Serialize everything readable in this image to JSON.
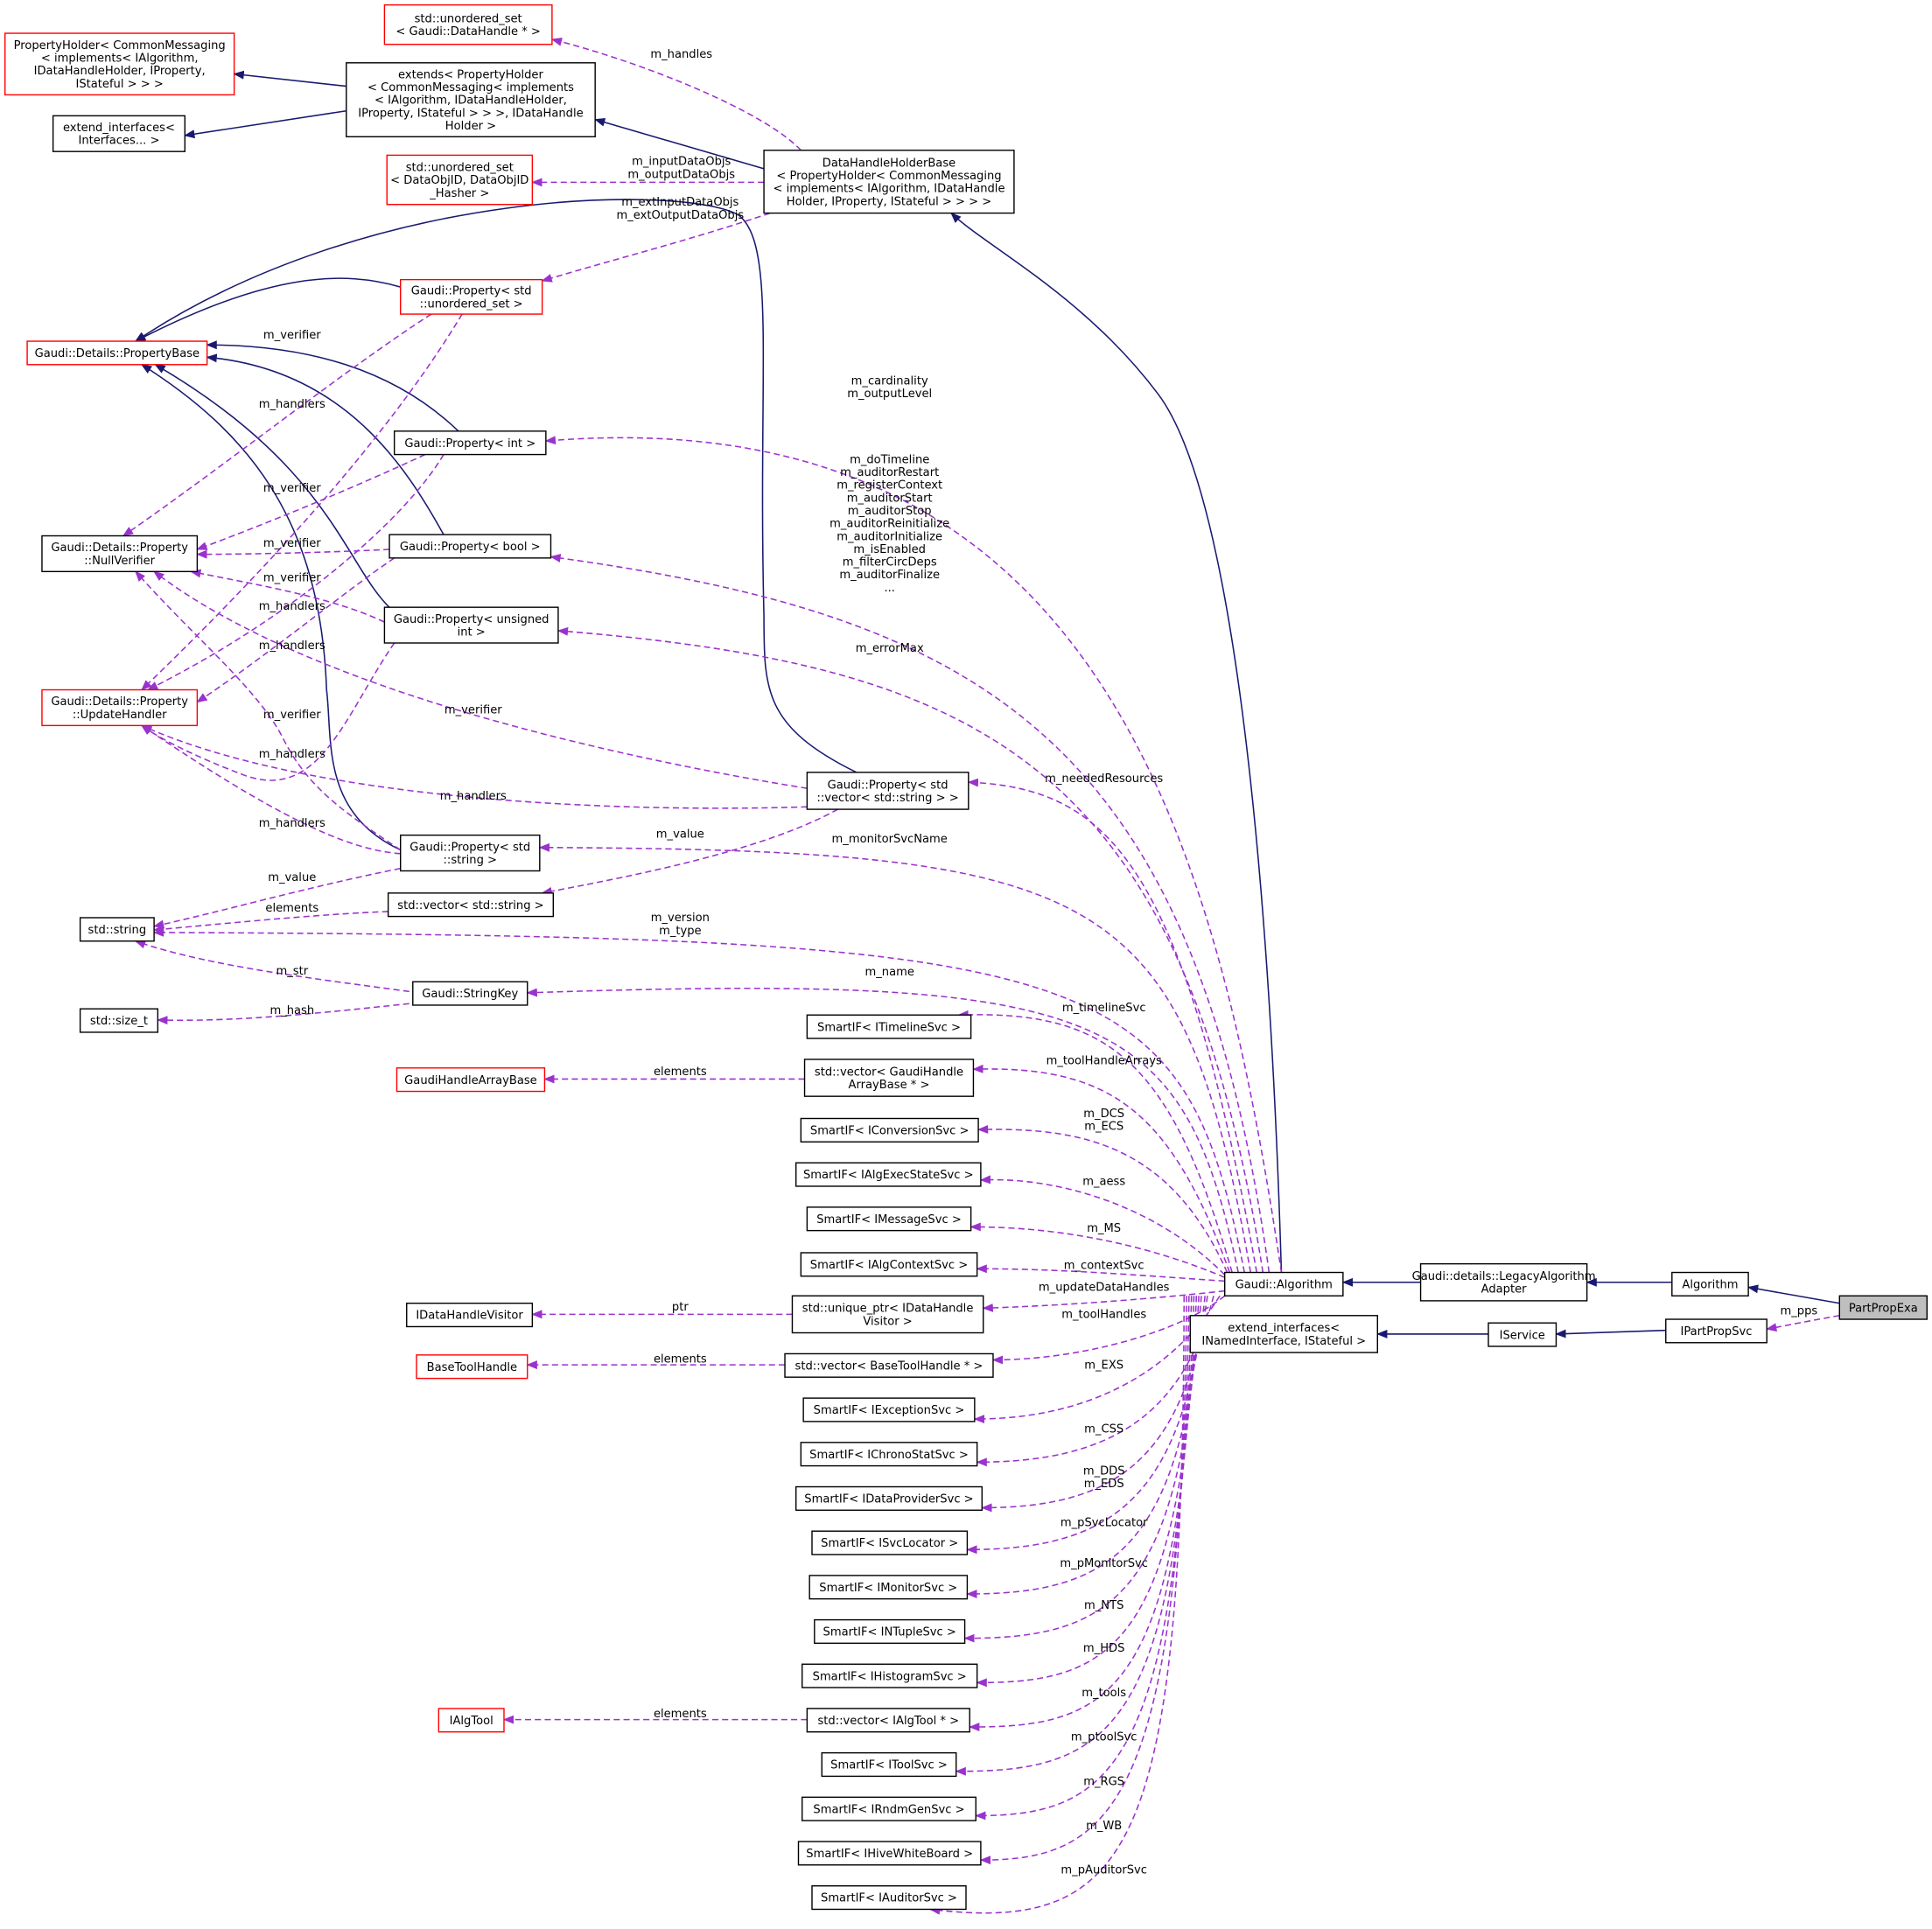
{
  "colors": {
    "inheritance": "#191970",
    "usage": "#9a32cd",
    "incomplete_border": "#ff0000",
    "complete_border": "#000000",
    "highlight_fill": "#bfbfbf"
  },
  "nodes": [
    {
      "id": "ush",
      "lines": [
        "std::unordered_set",
        "< Gaudi::DataHandle * >"
      ],
      "border": "red"
    },
    {
      "id": "ph",
      "lines": [
        "PropertyHolder< CommonMessaging",
        "< implements< IAlgorithm,",
        "IDataHandleHolder, IProperty,",
        "IStateful > > >"
      ],
      "border": "red"
    },
    {
      "id": "ext",
      "lines": [
        "extends< PropertyHolder",
        "< CommonMessaging< implements",
        "< IAlgorithm, IDataHandleHolder,",
        "IProperty, IStateful > > >, IDataHandle",
        "Holder >"
      ],
      "border": "black"
    },
    {
      "id": "ei",
      "lines": [
        "extend_interfaces<",
        "Interfaces... >"
      ],
      "border": "black"
    },
    {
      "id": "usd",
      "lines": [
        "std::unordered_set",
        "< DataObjID, DataObjID",
        "_Hasher >"
      ],
      "border": "red"
    },
    {
      "id": "dhhb",
      "lines": [
        "DataHandleHolderBase",
        "< PropertyHolder< CommonMessaging",
        "< implements< IAlgorithm, IDataHandle",
        "Holder, IProperty, IStateful > > > >"
      ],
      "border": "black"
    },
    {
      "id": "pus",
      "lines": [
        "Gaudi::Property< std",
        "::unordered_set >"
      ],
      "border": "red"
    },
    {
      "id": "pb",
      "lines": [
        "Gaudi::Details::PropertyBase"
      ],
      "border": "red"
    },
    {
      "id": "pint",
      "lines": [
        "Gaudi::Property< int >"
      ],
      "border": "black"
    },
    {
      "id": "nv",
      "lines": [
        "Gaudi::Details::Property",
        "::NullVerifier"
      ],
      "border": "black"
    },
    {
      "id": "pbool",
      "lines": [
        "Gaudi::Property< bool >"
      ],
      "border": "black"
    },
    {
      "id": "puint",
      "lines": [
        "Gaudi::Property< unsigned",
        "int >"
      ],
      "border": "black"
    },
    {
      "id": "uh",
      "lines": [
        "Gaudi::Details::Property",
        "::UpdateHandler"
      ],
      "border": "red"
    },
    {
      "id": "pvs",
      "lines": [
        "Gaudi::Property< std",
        "::vector< std::string > >"
      ],
      "border": "black"
    },
    {
      "id": "pstr",
      "lines": [
        "Gaudi::Property< std",
        "::string >"
      ],
      "border": "black"
    },
    {
      "id": "vs",
      "lines": [
        "std::vector< std::string >"
      ],
      "border": "black"
    },
    {
      "id": "str",
      "lines": [
        "std::string"
      ],
      "border": "black"
    },
    {
      "id": "sk",
      "lines": [
        "Gaudi::StringKey"
      ],
      "border": "black"
    },
    {
      "id": "st",
      "lines": [
        "std::size_t"
      ],
      "border": "black"
    },
    {
      "id": "tl",
      "lines": [
        "SmartIF< ITimelineSvc >"
      ],
      "border": "black"
    },
    {
      "id": "ghab",
      "lines": [
        "GaudiHandleArrayBase"
      ],
      "border": "red"
    },
    {
      "id": "vghab",
      "lines": [
        "std::vector< GaudiHandle",
        "ArrayBase * >"
      ],
      "border": "black"
    },
    {
      "id": "conv",
      "lines": [
        "SmartIF< IConversionSvc >"
      ],
      "border": "black"
    },
    {
      "id": "aes",
      "lines": [
        "SmartIF< IAlgExecStateSvc >"
      ],
      "border": "black"
    },
    {
      "id": "msg",
      "lines": [
        "SmartIF< IMessageSvc >"
      ],
      "border": "black"
    },
    {
      "id": "actx",
      "lines": [
        "SmartIF< IAlgContextSvc >"
      ],
      "border": "black"
    },
    {
      "id": "galg",
      "lines": [
        "Gaudi::Algorithm"
      ],
      "border": "black"
    },
    {
      "id": "laa",
      "lines": [
        "Gaudi::details::LegacyAlgorithm",
        "Adapter"
      ],
      "border": "black"
    },
    {
      "id": "alg",
      "lines": [
        "Algorithm"
      ],
      "border": "black"
    },
    {
      "id": "ppe",
      "lines": [
        "PartPropExa"
      ],
      "border": "black",
      "highlighted": true
    },
    {
      "id": "dhv",
      "lines": [
        "IDataHandleVisitor"
      ],
      "border": "black"
    },
    {
      "id": "updhv",
      "lines": [
        "std::unique_ptr< IDataHandle",
        "Visitor >"
      ],
      "border": "black"
    },
    {
      "id": "eini",
      "lines": [
        "extend_interfaces<",
        "INamedInterface, IStateful >"
      ],
      "border": "black"
    },
    {
      "id": "isvc",
      "lines": [
        "IService"
      ],
      "border": "black"
    },
    {
      "id": "ipps",
      "lines": [
        "IPartPropSvc"
      ],
      "border": "black"
    },
    {
      "id": "bth",
      "lines": [
        "BaseToolHandle"
      ],
      "border": "red"
    },
    {
      "id": "vbth",
      "lines": [
        "std::vector< BaseToolHandle * >"
      ],
      "border": "black"
    },
    {
      "id": "exc",
      "lines": [
        "SmartIF< IExceptionSvc >"
      ],
      "border": "black"
    },
    {
      "id": "chr",
      "lines": [
        "SmartIF< IChronoStatSvc >"
      ],
      "border": "black"
    },
    {
      "id": "dps",
      "lines": [
        "SmartIF< IDataProviderSvc >"
      ],
      "border": "black"
    },
    {
      "id": "svl",
      "lines": [
        "SmartIF< ISvcLocator >"
      ],
      "border": "black"
    },
    {
      "id": "mon",
      "lines": [
        "SmartIF< IMonitorSvc >"
      ],
      "border": "black"
    },
    {
      "id": "ntp",
      "lines": [
        "SmartIF< INTupleSvc >"
      ],
      "border": "black"
    },
    {
      "id": "his",
      "lines": [
        "SmartIF< IHistogramSvc >"
      ],
      "border": "black"
    },
    {
      "id": "iat",
      "lines": [
        "IAlgTool"
      ],
      "border": "red"
    },
    {
      "id": "viat",
      "lines": [
        "std::vector< IAlgTool * >"
      ],
      "border": "black"
    },
    {
      "id": "tsv",
      "lines": [
        "SmartIF< IToolSvc >"
      ],
      "border": "black"
    },
    {
      "id": "rnd",
      "lines": [
        "SmartIF< IRndmGenSvc >"
      ],
      "border": "black"
    },
    {
      "id": "hwb",
      "lines": [
        "SmartIF< IHiveWhiteBoard >"
      ],
      "border": "black"
    },
    {
      "id": "aud",
      "lines": [
        "SmartIF< IAuditorSvc >"
      ],
      "border": "black"
    }
  ],
  "edges": [
    {
      "from": "ext",
      "to": "ph",
      "kind": "inheritance",
      "label": []
    },
    {
      "from": "ext",
      "to": "ei",
      "kind": "inheritance",
      "label": []
    },
    {
      "from": "dhhb",
      "to": "ext",
      "kind": "inheritance",
      "label": []
    },
    {
      "from": "galg",
      "to": "dhhb",
      "kind": "inheritance",
      "label": []
    },
    {
      "from": "laa",
      "to": "galg",
      "kind": "inheritance",
      "label": []
    },
    {
      "from": "alg",
      "to": "laa",
      "kind": "inheritance",
      "label": []
    },
    {
      "from": "ppe",
      "to": "alg",
      "kind": "inheritance",
      "label": []
    },
    {
      "from": "ipps",
      "to": "isvc",
      "kind": "inheritance",
      "label": []
    },
    {
      "from": "isvc",
      "to": "eini",
      "kind": "inheritance",
      "label": []
    },
    {
      "from": "pus",
      "to": "pb",
      "kind": "inheritance",
      "label": []
    },
    {
      "from": "pint",
      "to": "pb",
      "kind": "inheritance",
      "label": []
    },
    {
      "from": "pbool",
      "to": "pb",
      "kind": "inheritance",
      "label": []
    },
    {
      "from": "puint",
      "to": "pb",
      "kind": "inheritance",
      "label": []
    },
    {
      "from": "pstr",
      "to": "pb",
      "kind": "inheritance",
      "label": []
    },
    {
      "from": "pvs",
      "to": "pb",
      "kind": "inheritance",
      "label": []
    },
    {
      "from": "dhhb",
      "to": "ush",
      "kind": "usage",
      "label": [
        "m_handles"
      ]
    },
    {
      "from": "dhhb",
      "to": "usd",
      "kind": "usage",
      "label": [
        "m_inputDataObjs",
        "m_outputDataObjs"
      ]
    },
    {
      "from": "dhhb",
      "to": "pus",
      "kind": "usage",
      "label": [
        "m_extInputDataObjs",
        "m_extOutputDataObjs"
      ]
    },
    {
      "from": "pus",
      "to": "nv",
      "kind": "usage",
      "label": [
        "m_verifier"
      ]
    },
    {
      "from": "pus",
      "to": "uh",
      "kind": "usage",
      "label": [
        "m_handlers"
      ]
    },
    {
      "from": "pint",
      "to": "nv",
      "kind": "usage",
      "label": [
        "m_verifier"
      ]
    },
    {
      "from": "pint",
      "to": "uh",
      "kind": "usage",
      "label": [
        "m_handlers"
      ]
    },
    {
      "from": "pbool",
      "to": "nv",
      "kind": "usage",
      "label": [
        "m_verifier"
      ]
    },
    {
      "from": "pbool",
      "to": "uh",
      "kind": "usage",
      "label": [
        "m_handlers"
      ]
    },
    {
      "from": "puint",
      "to": "nv",
      "kind": "usage",
      "label": [
        "m_verifier"
      ]
    },
    {
      "from": "puint",
      "to": "uh",
      "kind": "usage",
      "label": [
        "m_handlers"
      ]
    },
    {
      "from": "pstr",
      "to": "nv",
      "kind": "usage",
      "label": [
        "m_verifier"
      ]
    },
    {
      "from": "pstr",
      "to": "uh",
      "kind": "usage",
      "label": [
        "m_handlers"
      ]
    },
    {
      "from": "pvs",
      "to": "nv",
      "kind": "usage",
      "label": [
        "m_verifier"
      ]
    },
    {
      "from": "pvs",
      "to": "uh",
      "kind": "usage",
      "label": [
        "m_handlers"
      ]
    },
    {
      "from": "pstr",
      "to": "str",
      "kind": "usage",
      "label": [
        "m_value"
      ]
    },
    {
      "from": "pvs",
      "to": "vs",
      "kind": "usage",
      "label": [
        "m_value"
      ]
    },
    {
      "from": "vs",
      "to": "str",
      "kind": "usage",
      "label": [
        "elements"
      ]
    },
    {
      "from": "sk",
      "to": "str",
      "kind": "usage",
      "label": [
        "m_str"
      ]
    },
    {
      "from": "sk",
      "to": "st",
      "kind": "usage",
      "label": [
        "m_hash"
      ]
    },
    {
      "from": "vghab",
      "to": "ghab",
      "kind": "usage",
      "label": [
        "elements"
      ]
    },
    {
      "from": "updhv",
      "to": "dhv",
      "kind": "usage",
      "label": [
        "ptr"
      ]
    },
    {
      "from": "vbth",
      "to": "bth",
      "kind": "usage",
      "label": [
        "elements"
      ]
    },
    {
      "from": "viat",
      "to": "iat",
      "kind": "usage",
      "label": [
        "elements"
      ]
    },
    {
      "from": "ppe",
      "to": "ipps",
      "kind": "usage",
      "label": [
        "m_pps"
      ]
    },
    {
      "from": "galg",
      "to": "pint",
      "kind": "usage",
      "label": [
        "m_cardinality",
        "m_outputLevel"
      ]
    },
    {
      "from": "galg",
      "to": "pbool",
      "kind": "usage",
      "label": [
        "m_doTimeline",
        "m_auditorRestart",
        "m_registerContext",
        "m_auditorStart",
        "m_auditorStop",
        "m_auditorReinitialize",
        "m_auditorInitialize",
        "m_isEnabled",
        "m_filterCircDeps",
        "m_auditorFinalize",
        "..."
      ]
    },
    {
      "from": "galg",
      "to": "puint",
      "kind": "usage",
      "label": [
        "m_errorMax"
      ]
    },
    {
      "from": "galg",
      "to": "pvs",
      "kind": "usage",
      "label": [
        "m_neededResources"
      ]
    },
    {
      "from": "galg",
      "to": "pstr",
      "kind": "usage",
      "label": [
        "m_monitorSvcName"
      ]
    },
    {
      "from": "galg",
      "to": "str",
      "kind": "usage",
      "label": [
        "m_version",
        "m_type"
      ]
    },
    {
      "from": "galg",
      "to": "sk",
      "kind": "usage",
      "label": [
        "m_name"
      ]
    },
    {
      "from": "galg",
      "to": "tl",
      "kind": "usage",
      "label": [
        "m_timelineSvc"
      ]
    },
    {
      "from": "galg",
      "to": "vghab",
      "kind": "usage",
      "label": [
        "m_toolHandleArrays"
      ]
    },
    {
      "from": "galg",
      "to": "conv",
      "kind": "usage",
      "label": [
        "m_DCS",
        "m_ECS"
      ]
    },
    {
      "from": "galg",
      "to": "aes",
      "kind": "usage",
      "label": [
        "m_aess"
      ]
    },
    {
      "from": "galg",
      "to": "msg",
      "kind": "usage",
      "label": [
        "m_MS"
      ]
    },
    {
      "from": "galg",
      "to": "actx",
      "kind": "usage",
      "label": [
        "m_contextSvc"
      ]
    },
    {
      "from": "galg",
      "to": "updhv",
      "kind": "usage",
      "label": [
        "m_updateDataHandles"
      ]
    },
    {
      "from": "galg",
      "to": "vbth",
      "kind": "usage",
      "label": [
        "m_toolHandles"
      ]
    },
    {
      "from": "galg",
      "to": "exc",
      "kind": "usage",
      "label": [
        "m_EXS"
      ]
    },
    {
      "from": "galg",
      "to": "chr",
      "kind": "usage",
      "label": [
        "m_CSS"
      ]
    },
    {
      "from": "galg",
      "to": "dps",
      "kind": "usage",
      "label": [
        "m_DDS",
        "m_EDS"
      ]
    },
    {
      "from": "galg",
      "to": "svl",
      "kind": "usage",
      "label": [
        "m_pSvcLocator"
      ]
    },
    {
      "from": "galg",
      "to": "mon",
      "kind": "usage",
      "label": [
        "m_pMonitorSvc"
      ]
    },
    {
      "from": "galg",
      "to": "ntp",
      "kind": "usage",
      "label": [
        "m_NTS"
      ]
    },
    {
      "from": "galg",
      "to": "his",
      "kind": "usage",
      "label": [
        "m_HDS"
      ]
    },
    {
      "from": "galg",
      "to": "viat",
      "kind": "usage",
      "label": [
        "m_tools"
      ]
    },
    {
      "from": "galg",
      "to": "tsv",
      "kind": "usage",
      "label": [
        "m_ptoolSvc"
      ]
    },
    {
      "from": "galg",
      "to": "rnd",
      "kind": "usage",
      "label": [
        "m_RGS"
      ]
    },
    {
      "from": "galg",
      "to": "hwb",
      "kind": "usage",
      "label": [
        "m_WB"
      ]
    },
    {
      "from": "galg",
      "to": "aud",
      "kind": "usage",
      "label": [
        "m_pAuditorSvc"
      ]
    }
  ]
}
